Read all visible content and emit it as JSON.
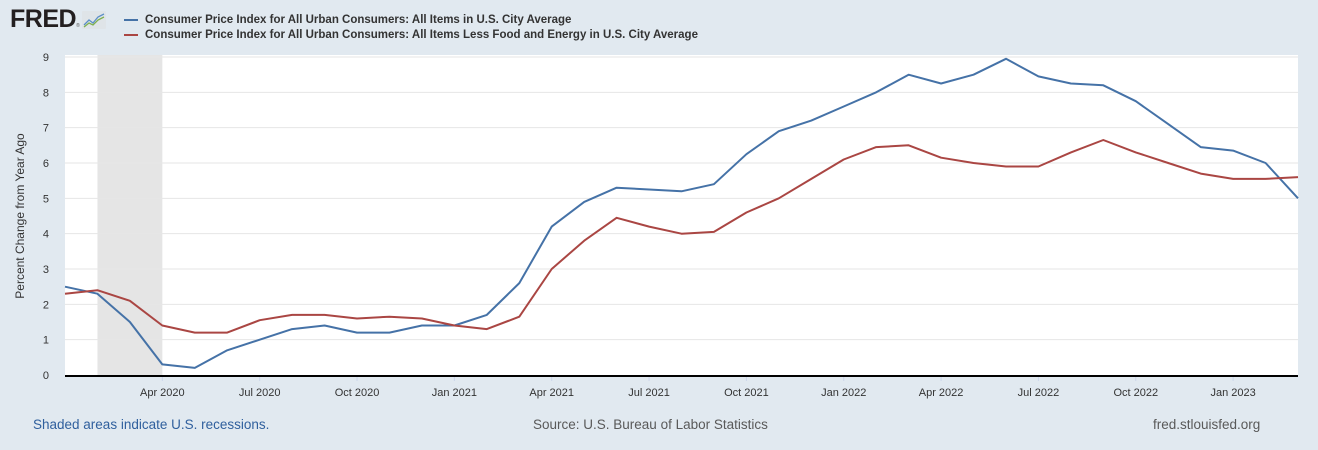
{
  "header": {
    "logo_text": "FRED",
    "logo_mark": "®",
    "logo_icon": "line-chart-icon"
  },
  "colors": {
    "background": "#e1e9f0",
    "plot_background": "#ffffff",
    "series1": "#4572a7",
    "series2": "#aa4643",
    "recession_shade": "#e5e5e5",
    "gridline": "#e6e6e6",
    "axis": "#000000"
  },
  "footer": {
    "recession_note": "Shaded areas indicate U.S. recessions.",
    "source": "Source: U.S. Bureau of Labor Statistics",
    "site": "fred.stlouisfed.org"
  },
  "chart_data": {
    "type": "line",
    "title": "",
    "xlabel": "",
    "ylabel": "Percent Change from Year Ago",
    "ylim": [
      0,
      9
    ],
    "yticks": [
      0,
      1,
      2,
      3,
      4,
      5,
      6,
      7,
      8,
      9
    ],
    "grid": true,
    "legend_position": "top-left",
    "x": [
      "2020-01",
      "2020-02",
      "2020-03",
      "2020-04",
      "2020-05",
      "2020-06",
      "2020-07",
      "2020-08",
      "2020-09",
      "2020-10",
      "2020-11",
      "2020-12",
      "2021-01",
      "2021-02",
      "2021-03",
      "2021-04",
      "2021-05",
      "2021-06",
      "2021-07",
      "2021-08",
      "2021-09",
      "2021-10",
      "2021-11",
      "2021-12",
      "2022-01",
      "2022-02",
      "2022-03",
      "2022-04",
      "2022-05",
      "2022-06",
      "2022-07",
      "2022-08",
      "2022-09",
      "2022-10",
      "2022-11",
      "2022-12",
      "2023-01",
      "2023-02",
      "2023-03"
    ],
    "xticks": [
      {
        "label": "Apr 2020",
        "index": 3
      },
      {
        "label": "Jul 2020",
        "index": 6
      },
      {
        "label": "Oct 2020",
        "index": 9
      },
      {
        "label": "Jan 2021",
        "index": 12
      },
      {
        "label": "Apr 2021",
        "index": 15
      },
      {
        "label": "Jul 2021",
        "index": 18
      },
      {
        "label": "Oct 2021",
        "index": 21
      },
      {
        "label": "Jan 2022",
        "index": 24
      },
      {
        "label": "Apr 2022",
        "index": 27
      },
      {
        "label": "Jul 2022",
        "index": 30
      },
      {
        "label": "Oct 2022",
        "index": 33
      },
      {
        "label": "Jan 2023",
        "index": 36
      }
    ],
    "recessions": [
      {
        "start_index": 1,
        "end_index": 3,
        "start": "2020-02",
        "end": "2020-04"
      }
    ],
    "series": [
      {
        "name": "Consumer Price Index for All Urban Consumers: All Items in U.S. City Average",
        "color": "#4572a7",
        "values": [
          2.5,
          2.3,
          1.5,
          0.3,
          0.2,
          0.7,
          1.0,
          1.3,
          1.4,
          1.2,
          1.2,
          1.4,
          1.4,
          1.7,
          2.6,
          4.2,
          4.9,
          5.3,
          5.25,
          5.2,
          5.4,
          6.25,
          6.9,
          7.2,
          7.6,
          8.0,
          8.5,
          8.25,
          8.5,
          8.95,
          8.45,
          8.25,
          8.2,
          7.75,
          7.1,
          6.45,
          6.35,
          6.0,
          5.0
        ]
      },
      {
        "name": "Consumer Price Index for All Urban Consumers: All Items Less Food and Energy in U.S. City Average",
        "color": "#aa4643",
        "values": [
          2.3,
          2.4,
          2.1,
          1.4,
          1.2,
          1.2,
          1.55,
          1.7,
          1.7,
          1.6,
          1.65,
          1.6,
          1.4,
          1.3,
          1.65,
          3.0,
          3.8,
          4.45,
          4.2,
          4.0,
          4.05,
          4.6,
          5.0,
          5.55,
          6.1,
          6.45,
          6.5,
          6.15,
          6.0,
          5.9,
          5.9,
          6.3,
          6.65,
          6.3,
          6.0,
          5.7,
          5.55,
          5.55,
          5.6
        ]
      }
    ]
  }
}
